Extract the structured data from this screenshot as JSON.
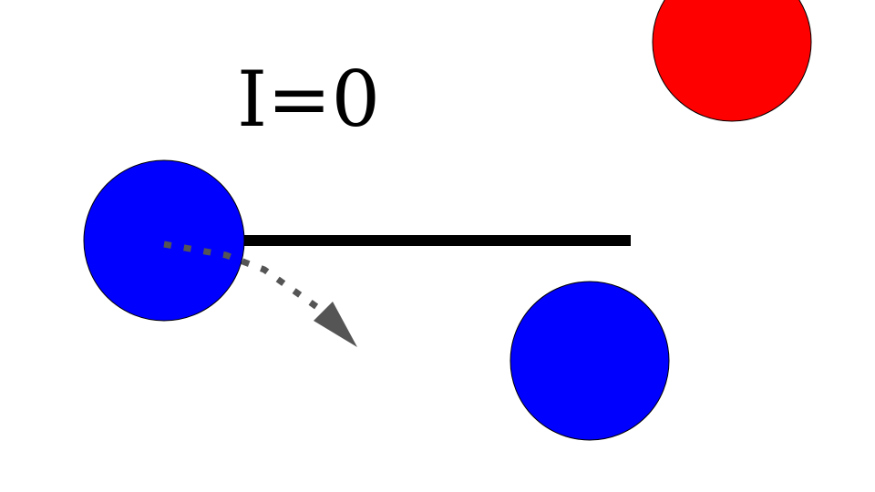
{
  "label": {
    "text": "I=0",
    "color": "#000000"
  },
  "objects": {
    "blue_ball_left": {
      "color": "#0000ff",
      "stroke": "#000000"
    },
    "blue_ball_right": {
      "color": "#0000ff",
      "stroke": "#000000"
    },
    "red_ball": {
      "color": "#ff0000",
      "stroke": "#000000"
    },
    "bar": {
      "color": "#000000"
    },
    "motion_arrow": {
      "color": "#555555",
      "style": "dotted"
    }
  }
}
